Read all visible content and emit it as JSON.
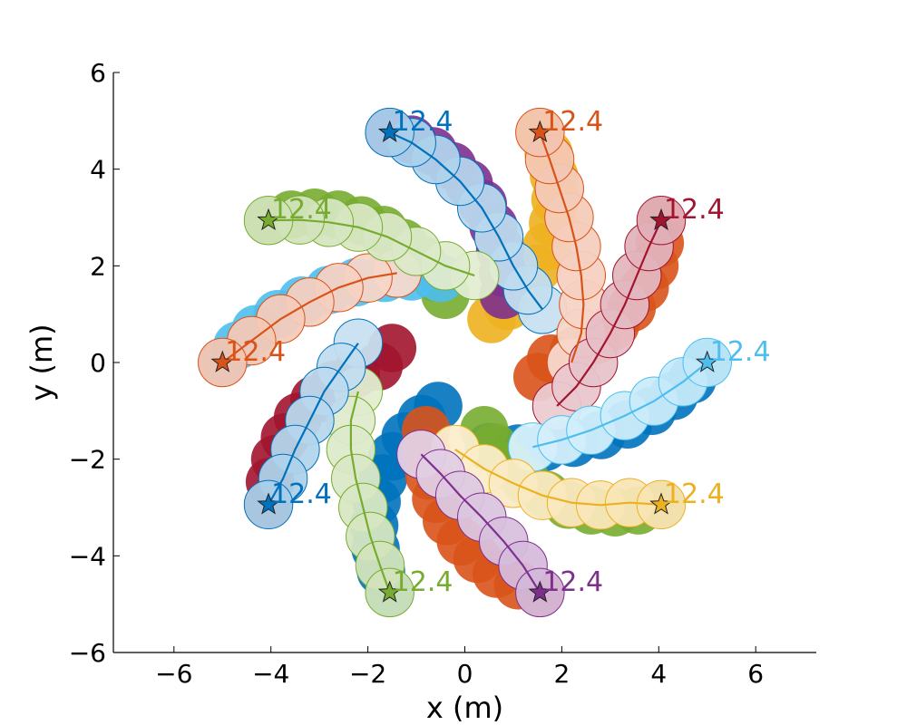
{
  "chart_data": {
    "type": "scatter",
    "title": "",
    "xlabel": "x (m)",
    "ylabel": "y (m)",
    "xlim": [
      -7.25,
      7.25
    ],
    "ylim": [
      -6,
      6
    ],
    "xticks": [
      -6,
      -4,
      -2,
      0,
      2,
      4,
      6
    ],
    "yticks": [
      -6,
      -4,
      -2,
      0,
      2,
      4,
      6
    ],
    "xtick_labels": [
      "−6",
      "−4",
      "−2",
      "0",
      "2",
      "4",
      "6"
    ],
    "ytick_labels": [
      "−6",
      "−4",
      "−2",
      "0",
      "2",
      "4",
      "6"
    ],
    "grid": false,
    "agent_radius": 0.5,
    "series": [
      {
        "color": "#0072BD",
        "points": [
          [
            5.0,
            0.0
          ],
          [
            4.69,
            -0.35
          ],
          [
            4.31,
            -0.69
          ],
          [
            3.86,
            -1.0
          ],
          [
            3.36,
            -1.28
          ],
          [
            2.81,
            -1.5
          ],
          [
            2.24,
            -1.66
          ],
          [
            1.65,
            -1.75
          ],
          [
            1.1,
            -1.78
          ],
          [
            0.5,
            -1.75
          ]
        ],
        "text": "12.4"
      },
      {
        "color": "#D95319",
        "points": [
          [
            4.05,
            2.94
          ],
          [
            4.02,
            2.47
          ],
          [
            3.91,
            2.0
          ],
          [
            3.71,
            1.55
          ],
          [
            3.44,
            1.13
          ],
          [
            3.1,
            0.77
          ],
          [
            2.7,
            0.46
          ],
          [
            2.25,
            0.23
          ],
          [
            1.78,
            0.08
          ],
          [
            1.5,
            -0.3
          ]
        ],
        "text": "12.4"
      },
      {
        "color": "#EDB120",
        "points": [
          [
            1.55,
            4.76
          ],
          [
            1.73,
            4.32
          ],
          [
            1.84,
            3.86
          ],
          [
            1.87,
            3.37
          ],
          [
            1.82,
            2.88
          ],
          [
            1.69,
            2.4
          ],
          [
            1.49,
            1.94
          ],
          [
            1.22,
            1.53
          ],
          [
            0.89,
            1.17
          ],
          [
            0.55,
            0.9
          ]
        ],
        "text": "12.4"
      },
      {
        "color": "#7E2F8E",
        "points": [
          [
            -1.55,
            4.76
          ],
          [
            -1.1,
            4.61
          ],
          [
            -0.66,
            4.37
          ],
          [
            -0.26,
            4.06
          ],
          [
            0.08,
            3.7
          ],
          [
            0.37,
            3.28
          ],
          [
            0.59,
            2.82
          ],
          [
            0.73,
            2.34
          ],
          [
            0.79,
            1.86
          ],
          [
            0.8,
            1.4
          ]
        ],
        "text": "12.4"
      },
      {
        "color": "#77AC30",
        "points": [
          [
            -4.05,
            2.94
          ],
          [
            -3.58,
            3.06
          ],
          [
            -3.1,
            3.1
          ],
          [
            -2.61,
            3.06
          ],
          [
            -2.13,
            2.94
          ],
          [
            -1.68,
            2.74
          ],
          [
            -1.27,
            2.47
          ],
          [
            -0.91,
            2.14
          ],
          [
            -0.61,
            1.76
          ],
          [
            -0.4,
            1.4
          ]
        ],
        "text": "12.4"
      },
      {
        "color": "#4DBEEE",
        "points": [
          [
            -5.0,
            0.0
          ],
          [
            -4.69,
            0.35
          ],
          [
            -4.31,
            0.69
          ],
          [
            -3.86,
            1.0
          ],
          [
            -3.36,
            1.28
          ],
          [
            -2.81,
            1.5
          ],
          [
            -2.24,
            1.66
          ],
          [
            -1.65,
            1.75
          ],
          [
            -1.1,
            1.78
          ],
          [
            -0.5,
            1.75
          ]
        ],
        "text": "12.4"
      },
      {
        "color": "#A2142F",
        "points": [
          [
            -4.05,
            -2.94
          ],
          [
            -4.02,
            -2.47
          ],
          [
            -3.91,
            -2.0
          ],
          [
            -3.71,
            -1.55
          ],
          [
            -3.44,
            -1.13
          ],
          [
            -3.1,
            -0.77
          ],
          [
            -2.7,
            -0.46
          ],
          [
            -2.25,
            -0.23
          ],
          [
            -1.78,
            -0.08
          ],
          [
            -1.5,
            0.3
          ]
        ],
        "text": "12.4"
      },
      {
        "color": "#0072BD",
        "points": [
          [
            -1.55,
            -4.76
          ],
          [
            -1.73,
            -4.32
          ],
          [
            -1.84,
            -3.86
          ],
          [
            -1.87,
            -3.37
          ],
          [
            -1.82,
            -2.88
          ],
          [
            -1.69,
            -2.4
          ],
          [
            -1.49,
            -1.94
          ],
          [
            -1.22,
            -1.53
          ],
          [
            -0.89,
            -1.17
          ],
          [
            -0.55,
            -0.9
          ]
        ],
        "text": "12.4"
      },
      {
        "color": "#D95319",
        "points": [
          [
            1.55,
            -4.76
          ],
          [
            1.1,
            -4.61
          ],
          [
            0.66,
            -4.37
          ],
          [
            0.26,
            -4.06
          ],
          [
            -0.08,
            -3.7
          ],
          [
            -0.37,
            -3.28
          ],
          [
            -0.59,
            -2.82
          ],
          [
            -0.73,
            -2.34
          ],
          [
            -0.79,
            -1.86
          ],
          [
            -0.8,
            -1.4
          ]
        ],
        "text": "12.4"
      },
      {
        "color": "#77AC30",
        "points": [
          [
            4.05,
            -2.94
          ],
          [
            3.58,
            -3.06
          ],
          [
            3.1,
            -3.1
          ],
          [
            2.61,
            -3.06
          ],
          [
            2.13,
            -2.94
          ],
          [
            1.68,
            -2.74
          ],
          [
            1.27,
            -2.47
          ],
          [
            0.91,
            -2.14
          ],
          [
            0.61,
            -1.76
          ],
          [
            0.4,
            -1.4
          ]
        ],
        "text": "12.4"
      },
      {
        "color": "#0072BD",
        "points": [
          [
            -1.55,
            4.76
          ],
          [
            -1.1,
            4.55
          ],
          [
            -0.6,
            4.2
          ],
          [
            -0.1,
            3.75
          ],
          [
            0.35,
            3.2
          ],
          [
            0.7,
            2.6
          ],
          [
            1.0,
            2.0
          ],
          [
            1.3,
            1.5
          ],
          [
            1.6,
            1.1
          ]
        ],
        "text": "12.4"
      },
      {
        "color": "#D95319",
        "points": [
          [
            1.55,
            4.76
          ],
          [
            1.75,
            4.2
          ],
          [
            1.95,
            3.6
          ],
          [
            2.15,
            3.0
          ],
          [
            2.3,
            2.4
          ],
          [
            2.4,
            1.8
          ],
          [
            2.45,
            1.2
          ],
          [
            2.4,
            0.6
          ],
          [
            2.2,
            0.0
          ]
        ],
        "text": "12.4"
      },
      {
        "color": "#A2142F",
        "points": [
          [
            4.05,
            2.94
          ],
          [
            3.8,
            2.4
          ],
          [
            3.55,
            1.8
          ],
          [
            3.3,
            1.2
          ],
          [
            3.0,
            0.6
          ],
          [
            2.65,
            0.0
          ],
          [
            2.3,
            -0.5
          ],
          [
            1.9,
            -0.9
          ]
        ],
        "text": "12.4"
      },
      {
        "color": "#4DBEEE",
        "points": [
          [
            5.0,
            0.0
          ],
          [
            4.5,
            -0.4
          ],
          [
            3.9,
            -0.8
          ],
          [
            3.3,
            -1.1
          ],
          [
            2.6,
            -1.4
          ],
          [
            2.0,
            -1.6
          ],
          [
            1.4,
            -1.75
          ]
        ],
        "text": "12.4"
      },
      {
        "color": "#EDB120",
        "points": [
          [
            4.05,
            -2.94
          ],
          [
            3.4,
            -2.9
          ],
          [
            2.8,
            -2.95
          ],
          [
            2.2,
            -2.9
          ],
          [
            1.6,
            -2.75
          ],
          [
            1.0,
            -2.5
          ],
          [
            0.4,
            -2.2
          ],
          [
            -0.2,
            -1.8
          ]
        ],
        "text": "12.4"
      },
      {
        "color": "#7E2F8E",
        "points": [
          [
            1.55,
            -4.76
          ],
          [
            1.2,
            -4.2
          ],
          [
            0.8,
            -3.7
          ],
          [
            0.35,
            -3.2
          ],
          [
            -0.1,
            -2.75
          ],
          [
            -0.5,
            -2.3
          ],
          [
            -0.9,
            -1.9
          ]
        ],
        "text": "12.4"
      },
      {
        "color": "#77AC30",
        "points": [
          [
            -1.55,
            -4.76
          ],
          [
            -1.75,
            -4.2
          ],
          [
            -1.95,
            -3.6
          ],
          [
            -2.1,
            -3.0
          ],
          [
            -2.25,
            -2.4
          ],
          [
            -2.35,
            -1.8
          ],
          [
            -2.35,
            -1.2
          ],
          [
            -2.2,
            -0.6
          ]
        ],
        "text": "12.4"
      },
      {
        "color": "#0072BD",
        "points": [
          [
            -4.05,
            -2.94
          ],
          [
            -3.75,
            -2.4
          ],
          [
            -3.5,
            -1.8
          ],
          [
            -3.2,
            -1.2
          ],
          [
            -2.9,
            -0.6
          ],
          [
            -2.55,
            -0.1
          ],
          [
            -2.2,
            0.4
          ]
        ],
        "text": "12.4"
      },
      {
        "color": "#D95319",
        "points": [
          [
            -5.0,
            0.0
          ],
          [
            -4.4,
            0.45
          ],
          [
            -3.8,
            0.9
          ],
          [
            -3.2,
            1.25
          ],
          [
            -2.6,
            1.55
          ],
          [
            -2.0,
            1.75
          ],
          [
            -1.4,
            1.85
          ]
        ],
        "text": "12.4"
      },
      {
        "color": "#77AC30",
        "points": [
          [
            -4.05,
            2.94
          ],
          [
            -3.4,
            2.95
          ],
          [
            -2.8,
            2.9
          ],
          [
            -2.2,
            2.8
          ],
          [
            -1.6,
            2.6
          ],
          [
            -1.0,
            2.3
          ],
          [
            -0.4,
            2.0
          ],
          [
            0.2,
            1.8
          ]
        ],
        "text": "12.4"
      }
    ]
  }
}
